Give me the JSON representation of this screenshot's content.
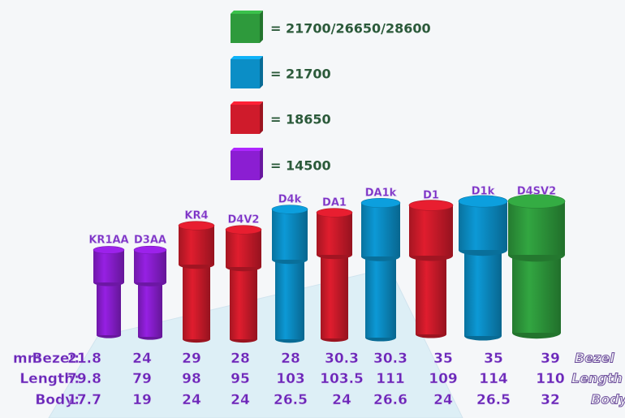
{
  "legend": [
    {
      "label": "= 21700/26650/28600",
      "color": "#2e9a3c"
    },
    {
      "label": "= 21700",
      "color": "#0b8ec6"
    },
    {
      "label": "= 18650",
      "color": "#cf1b2b"
    },
    {
      "label": "= 14500",
      "color": "#8b1ed2"
    }
  ],
  "lights": [
    {
      "label": "KR1AA",
      "color": "#8b1ed2"
    },
    {
      "label": "D3AA",
      "color": "#8b1ed2"
    },
    {
      "label": "KR4",
      "color": "#cf1b2b"
    },
    {
      "label": "D4V2",
      "color": "#cf1b2b"
    },
    {
      "label": "D4k",
      "color": "#0b8ec6"
    },
    {
      "label": "DA1",
      "color": "#cf1b2b"
    },
    {
      "label": "DA1k",
      "color": "#0b8ec6"
    },
    {
      "label": "D1",
      "color": "#cf1b2b"
    },
    {
      "label": "D1k",
      "color": "#0b8ec6"
    },
    {
      "label": "D4SV2",
      "color": "#2e9a3c"
    }
  ],
  "table": {
    "unit": "mm",
    "rows": [
      {
        "label": "Bezel:",
        "end_label": "Bezel",
        "values": [
          21.8,
          24,
          29,
          28,
          28,
          30.3,
          30.3,
          35,
          35,
          39
        ]
      },
      {
        "label": "Length:",
        "end_label": "Length",
        "values": [
          79.8,
          79,
          98,
          95,
          103,
          103.5,
          111,
          109,
          114,
          110
        ]
      },
      {
        "label": "Body:",
        "end_label": "Body",
        "values": [
          17.7,
          19,
          24,
          24,
          26.5,
          24,
          26.6,
          24,
          26.5,
          32
        ]
      }
    ]
  }
}
